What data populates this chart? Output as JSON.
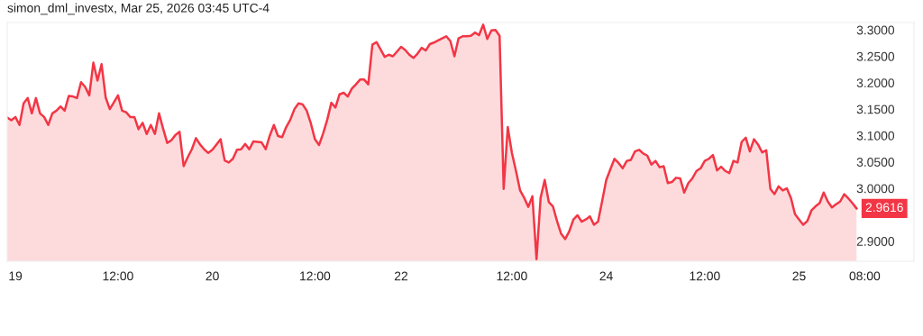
{
  "chart_data": {
    "type": "area",
    "title": "simon_dml_investx, Mar 25, 2026 03:45 UTC-4",
    "ylim": [
      2.862,
      3.314
    ],
    "yticks": [
      {
        "value": 2.9,
        "label": "2.9000"
      },
      {
        "value": 3.0,
        "label": "3.0000"
      },
      {
        "value": 3.05,
        "label": "3.0500"
      },
      {
        "value": 3.1,
        "label": "3.1000"
      },
      {
        "value": 3.15,
        "label": "3.1500"
      },
      {
        "value": 3.2,
        "label": "3.2000"
      },
      {
        "value": 3.25,
        "label": "3.2500"
      },
      {
        "value": 3.3,
        "label": "3.3000"
      }
    ],
    "grid": false,
    "legend": false,
    "annotations": [
      "2.9616"
    ],
    "categories": [
      null,
      null,
      "19",
      null,
      null,
      null,
      null,
      null,
      null,
      null,
      null,
      null,
      null,
      null,
      null,
      null,
      null,
      null,
      null,
      null,
      null,
      null,
      null,
      null,
      null,
      null,
      null,
      "12:00",
      null,
      null,
      null,
      null,
      null,
      null,
      null,
      null,
      null,
      null,
      null,
      null,
      null,
      null,
      null,
      null,
      null,
      null,
      null,
      null,
      null,
      null,
      "20",
      null,
      null,
      null,
      null,
      null,
      null,
      null,
      null,
      null,
      null,
      null,
      null,
      null,
      null,
      null,
      null,
      null,
      null,
      null,
      null,
      null,
      null,
      null,
      null,
      "12:00",
      null,
      null,
      null,
      null,
      null,
      null,
      null,
      null,
      null,
      null,
      null,
      null,
      null,
      null,
      null,
      null,
      null,
      null,
      null,
      null,
      "22",
      null,
      null,
      null,
      null,
      null,
      null,
      null,
      null,
      null,
      null,
      null,
      null,
      null,
      null,
      null,
      null,
      null,
      null,
      null,
      null,
      null,
      null,
      null,
      null,
      null,
      null,
      "12:00",
      null,
      null,
      null,
      null,
      null,
      null,
      null,
      null,
      null,
      null,
      null,
      null,
      null,
      null,
      null,
      null,
      null,
      null,
      null,
      null,
      null,
      null,
      "24",
      null,
      null,
      null,
      null,
      null,
      null,
      null,
      null,
      null,
      null,
      null,
      null,
      null,
      null,
      null,
      null,
      null,
      null,
      null,
      null,
      null,
      null,
      null,
      "12:00",
      null,
      null,
      null,
      null,
      null,
      null,
      null,
      null,
      null,
      null,
      null,
      null,
      null,
      null,
      null,
      null,
      null,
      null,
      null,
      null,
      null,
      null,
      "25",
      null,
      null,
      null,
      null,
      null,
      null,
      null,
      null,
      null,
      null,
      null,
      null,
      null,
      null,
      null,
      "08:00"
    ],
    "series": [
      {
        "color": "#f23645",
        "values": [
          3.134,
          3.129,
          3.135,
          3.12,
          3.161,
          3.171,
          3.142,
          3.171,
          3.142,
          3.135,
          3.12,
          3.142,
          3.147,
          3.155,
          3.147,
          3.175,
          3.174,
          3.171,
          3.201,
          3.192,
          3.176,
          3.238,
          3.204,
          3.235,
          3.172,
          3.15,
          3.163,
          3.176,
          3.147,
          3.144,
          3.135,
          3.135,
          3.112,
          3.124,
          3.103,
          3.12,
          3.103,
          3.142,
          3.113,
          3.086,
          3.091,
          3.101,
          3.107,
          3.042,
          3.059,
          3.074,
          3.095,
          3.083,
          3.074,
          3.067,
          3.073,
          3.083,
          3.093,
          3.053,
          3.049,
          3.056,
          3.073,
          3.074,
          3.084,
          3.074,
          3.089,
          3.088,
          3.087,
          3.074,
          3.1,
          3.12,
          3.099,
          3.097,
          3.116,
          3.13,
          3.15,
          3.161,
          3.159,
          3.147,
          3.123,
          3.093,
          3.082,
          3.104,
          3.13,
          3.162,
          3.153,
          3.178,
          3.181,
          3.174,
          3.189,
          3.197,
          3.206,
          3.206,
          3.197,
          3.272,
          3.277,
          3.263,
          3.249,
          3.253,
          3.25,
          3.259,
          3.268,
          3.262,
          3.253,
          3.247,
          3.255,
          3.266,
          3.261,
          3.273,
          3.276,
          3.28,
          3.284,
          3.288,
          3.279,
          3.25,
          3.284,
          3.288,
          3.288,
          3.289,
          3.295,
          3.29,
          3.31,
          3.283,
          3.299,
          3.3,
          3.289,
          2.999,
          3.116,
          3.067,
          3.033,
          2.996,
          2.982,
          2.965,
          2.985,
          2.866,
          2.982,
          3.016,
          2.974,
          2.966,
          2.938,
          2.914,
          2.904,
          2.919,
          2.941,
          2.949,
          2.937,
          2.941,
          2.947,
          2.931,
          2.937,
          2.976,
          3.016,
          3.036,
          3.056,
          3.048,
          3.038,
          3.052,
          3.054,
          3.07,
          3.073,
          3.066,
          3.062,
          3.045,
          3.052,
          3.04,
          3.042,
          3.01,
          3.012,
          3.02,
          3.019,
          2.992,
          3.01,
          3.019,
          3.033,
          3.038,
          3.052,
          3.056,
          3.063,
          3.034,
          3.041,
          3.033,
          3.029,
          3.052,
          3.049,
          3.088,
          3.096,
          3.07,
          3.093,
          3.083,
          3.068,
          3.072,
          2.999,
          2.989,
          3.004,
          2.996,
          3.0,
          2.982,
          2.951,
          2.941,
          2.931,
          2.938,
          2.958,
          2.966,
          2.972,
          2.992,
          2.975,
          2.964,
          2.97,
          2.975,
          2.989,
          2.981,
          2.972,
          2.962,
          null,
          null
        ]
      }
    ]
  }
}
